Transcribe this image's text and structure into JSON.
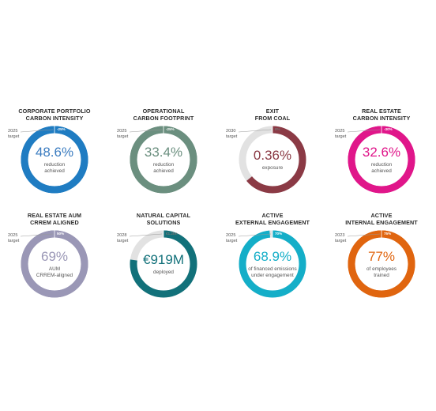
{
  "chart_data": [
    {
      "type": "pie",
      "title_lines": [
        "CORPORATE PORTFOLIO",
        "CARBON INTENSITY"
      ],
      "value_label": "48.6%",
      "sub_lines": [
        "reduction",
        "achieved"
      ],
      "target_lines": [
        "2025",
        "target"
      ],
      "target_label": "-25%",
      "progress": 1.0,
      "color": "#1f7cc2",
      "track_color": "#1f7cc2",
      "value_color": "#3b7cc0",
      "tag_color": "#1f7cc2"
    },
    {
      "type": "pie",
      "title_lines": [
        "OPERATIONAL",
        "CARBON FOOTPRINT"
      ],
      "value_label": "33.4%",
      "sub_lines": [
        "reduction",
        "achieved"
      ],
      "target_lines": [
        "2025",
        "target"
      ],
      "target_label": "-25%",
      "progress": 1.0,
      "color": "#6b8f7f",
      "track_color": "#6b8f7f",
      "value_color": "#6b8f7f",
      "tag_color": "#6b8f7f"
    },
    {
      "type": "pie",
      "title_lines": [
        "EXIT",
        "FROM COAL"
      ],
      "value_label": "0.36%",
      "sub_lines": [
        "exposure"
      ],
      "target_lines": [
        "2030",
        "target"
      ],
      "target_label": "0%",
      "progress": 0.64,
      "color": "#8b3a45",
      "track_color": "#e2e2e2",
      "value_color": "#8b3a45",
      "tag_color": "light"
    },
    {
      "type": "pie",
      "title_lines": [
        "REAL ESTATE",
        "CARBON INTENSITY"
      ],
      "value_label": "32.6%",
      "sub_lines": [
        "reduction",
        "achieved"
      ],
      "target_lines": [
        "2025",
        "target"
      ],
      "target_label": "-30%",
      "progress": 1.0,
      "color": "#e0168a",
      "track_color": "#e0168a",
      "value_color": "#e0168a",
      "tag_color": "#e0168a"
    },
    {
      "type": "pie",
      "title_lines": [
        "REAL ESTATE AUM",
        "CRREM ALIGNED"
      ],
      "value_label": "69%",
      "sub_lines": [
        "AUM",
        "CRREM-aligned"
      ],
      "target_lines": [
        "2025",
        "target"
      ],
      "target_label": "50%",
      "progress": 1.0,
      "color": "#9a97b6",
      "track_color": "#9a97b6",
      "value_color": "#9a97b6",
      "tag_color": "#9a97b6"
    },
    {
      "type": "pie",
      "title_lines": [
        "NATURAL CAPITAL",
        "SOLUTIONS"
      ],
      "value_label": "€919M",
      "sub_lines": [
        "deployed"
      ],
      "target_lines": [
        "2028",
        "target"
      ],
      "target_label": "€1.2bn",
      "progress": 0.77,
      "color": "#12717a",
      "track_color": "#e2e2e2",
      "value_color": "#12717a",
      "tag_color": "light"
    },
    {
      "type": "pie",
      "title_lines": [
        "ACTIVE",
        "EXTERNAL ENGAGEMENT"
      ],
      "value_label": "68.9%",
      "sub_lines": [
        "of financed emissions",
        "under engagement"
      ],
      "target_lines": [
        "2025",
        "target"
      ],
      "target_label": "70%",
      "progress": 0.984,
      "color": "#14aec8",
      "track_color": "#e2e2e2",
      "value_color": "#14aec8",
      "tag_color": "#14aec8"
    },
    {
      "type": "pie",
      "title_lines": [
        "ACTIVE",
        "INTERNAL ENGAGEMENT"
      ],
      "value_label": "77%",
      "sub_lines": [
        "of employees",
        "trained"
      ],
      "target_lines": [
        "2023",
        "target"
      ],
      "target_label": "75%",
      "progress": 1.0,
      "color": "#e0650f",
      "track_color": "#e0650f",
      "value_color": "#e0650f",
      "tag_color": "#e0650f"
    }
  ]
}
